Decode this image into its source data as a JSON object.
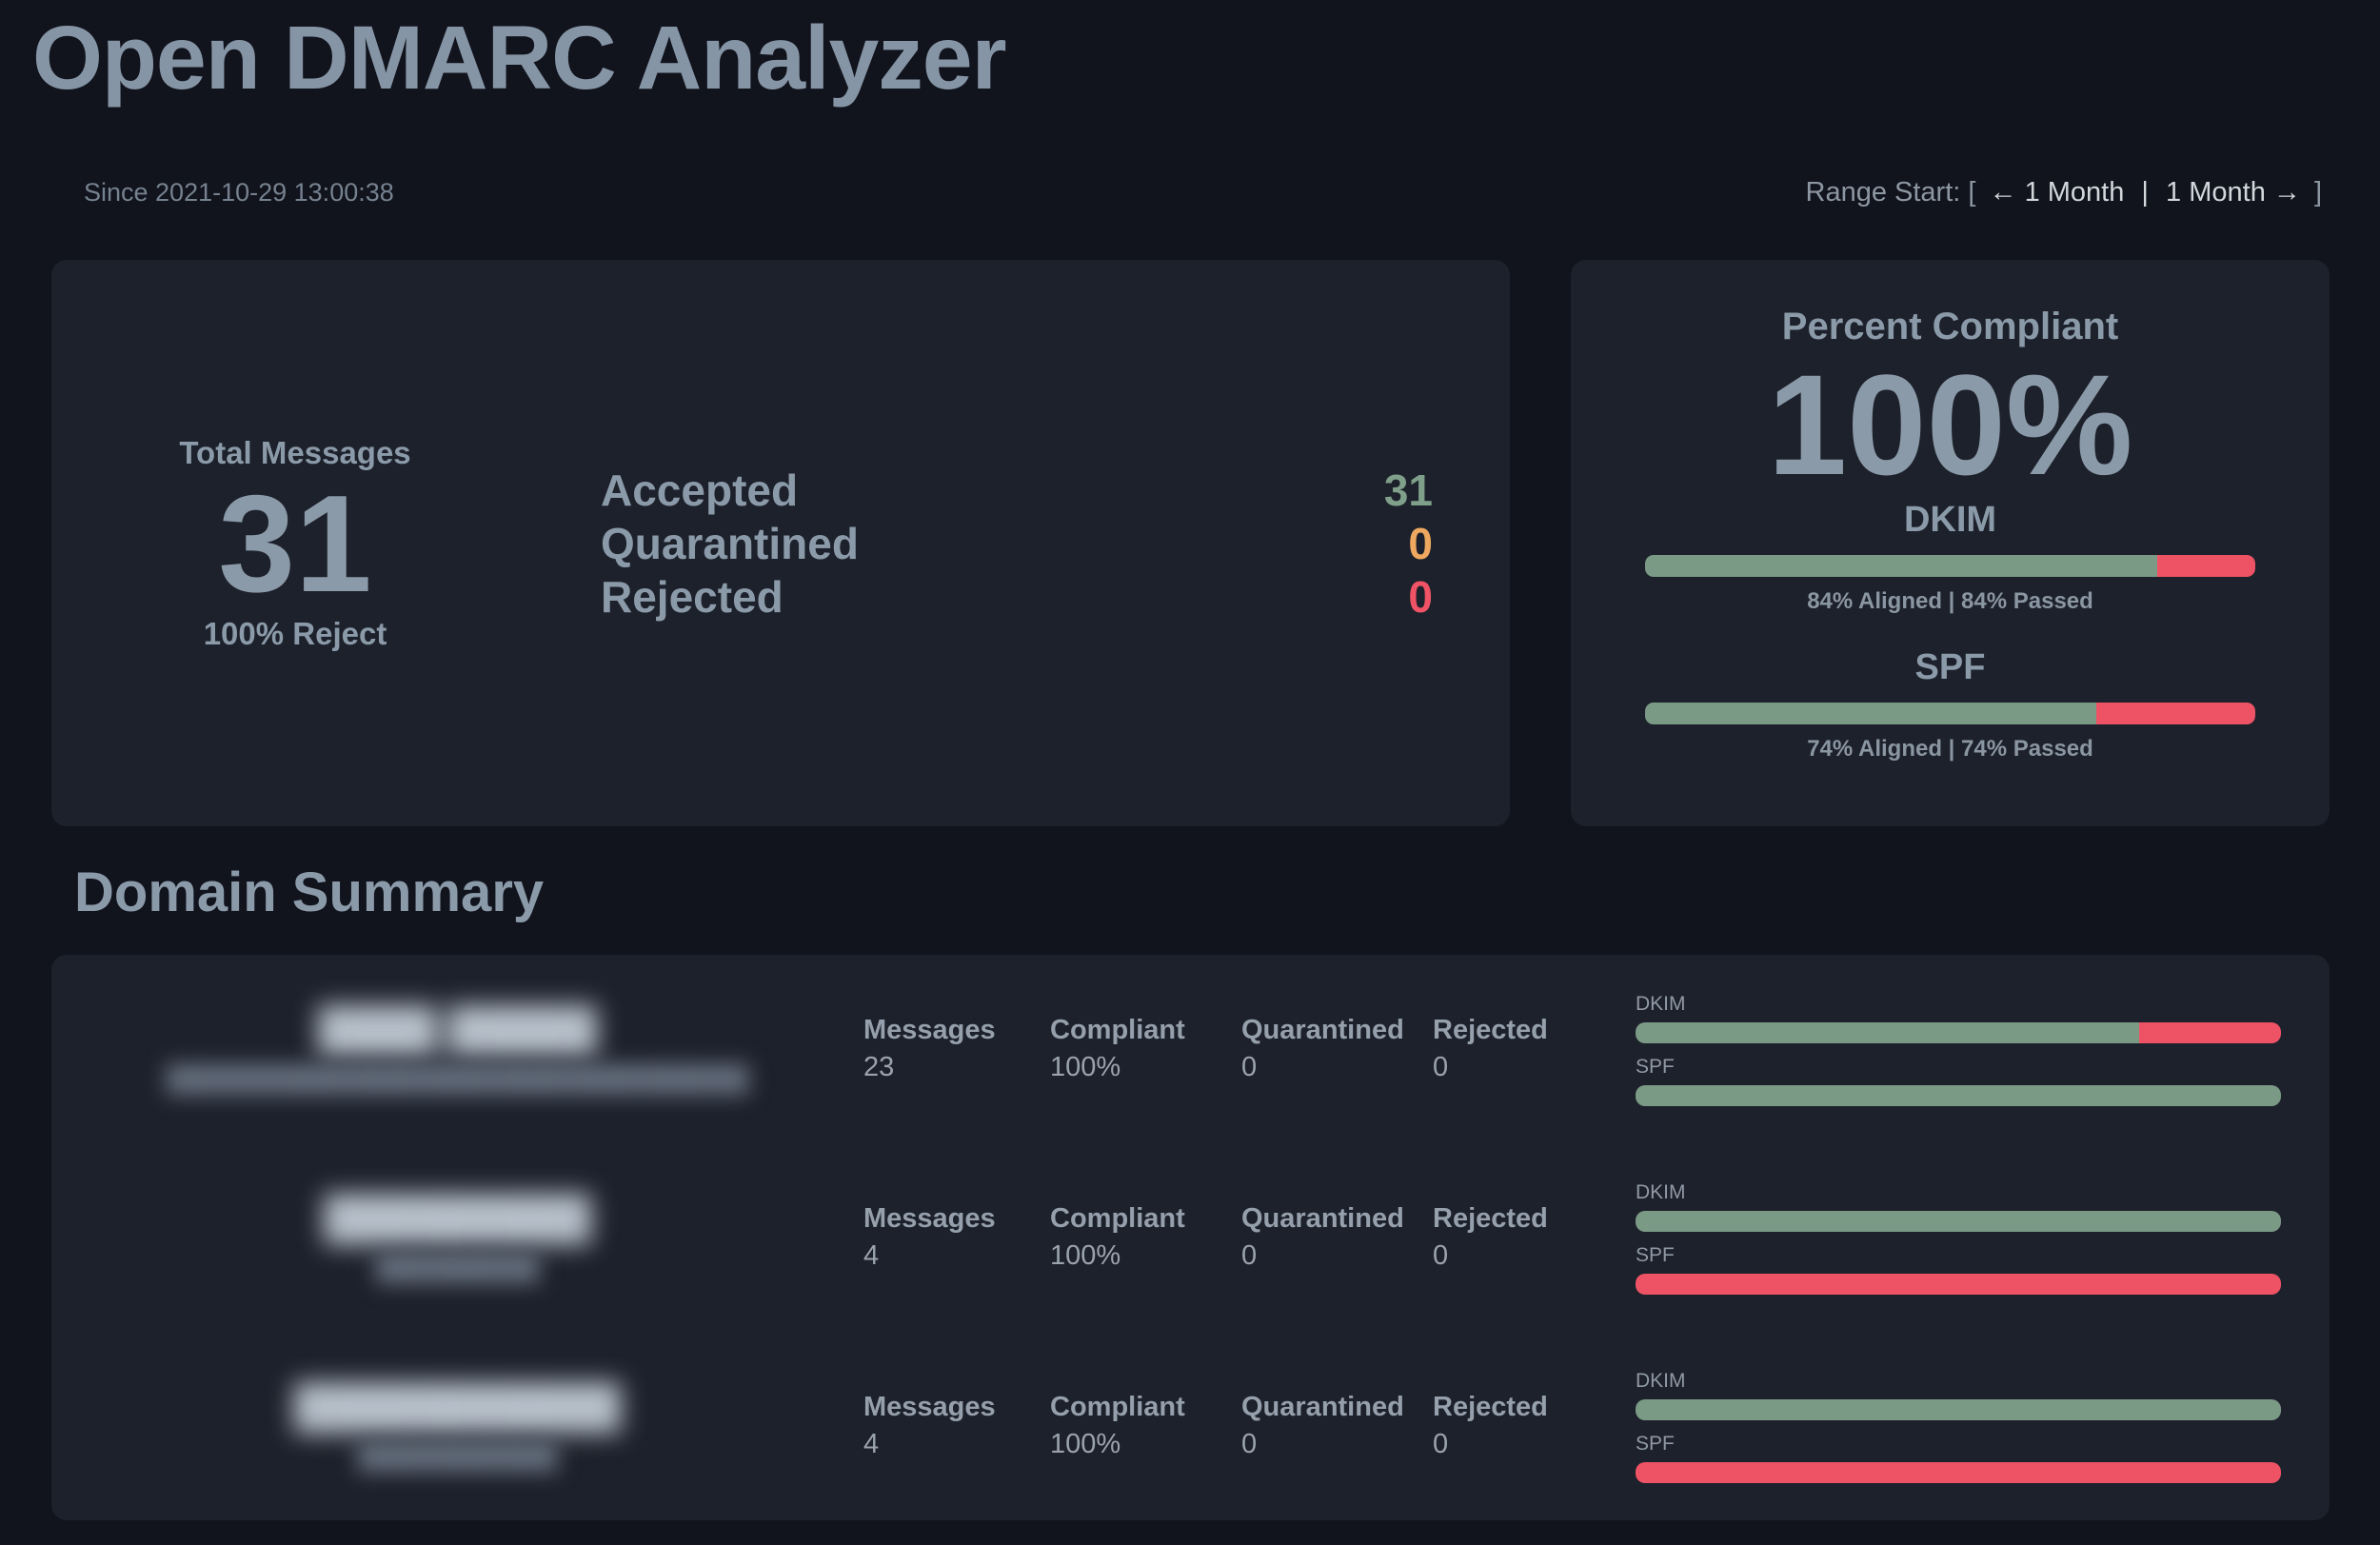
{
  "header": {
    "title": "Open DMARC Analyzer",
    "since": "Since 2021-10-29 13:00:38",
    "range": {
      "prefix": "Range Start: [",
      "back": "← 1 Month",
      "separator": "|",
      "forward": "1 Month →",
      "suffix": "]"
    }
  },
  "overview": {
    "total_label": "Total Messages",
    "total_value": "31",
    "total_sub": "100% Reject",
    "statuses": [
      {
        "label": "Accepted",
        "value": "31",
        "color": "#7f9f8a"
      },
      {
        "label": "Quarantined",
        "value": "0",
        "color": "#efa860"
      },
      {
        "label": "Rejected",
        "value": "0",
        "color": "#ef5365"
      }
    ]
  },
  "compliance": {
    "title": "Percent Compliant",
    "percent": "100%",
    "metrics": [
      {
        "name": "DKIM",
        "passed_pct": 84,
        "caption": "84% Aligned | 84% Passed"
      },
      {
        "name": "SPF",
        "passed_pct": 74,
        "caption": "74% Aligned | 74% Passed"
      }
    ]
  },
  "domain_summary": {
    "title": "Domain Summary",
    "rows": [
      {
        "domain_masked": "████ █████",
        "domain_submasked": "████████████████████████████████",
        "messages_label": "Messages",
        "messages_value": "23",
        "compliant_label": "Compliant",
        "compliant_value": "100%",
        "quarantined_label": "Quarantined",
        "quarantined_value": "0",
        "rejected_label": "Rejected",
        "rejected_value": "0",
        "dkim_label": "DKIM",
        "dkim_passed_pct": 78,
        "spf_label": "SPF",
        "spf_passed_pct": 100
      },
      {
        "domain_masked": "█████████",
        "domain_submasked": "█████████",
        "messages_label": "Messages",
        "messages_value": "4",
        "compliant_label": "Compliant",
        "compliant_value": "100%",
        "quarantined_label": "Quarantined",
        "quarantined_value": "0",
        "rejected_label": "Rejected",
        "rejected_value": "0",
        "dkim_label": "DKIM",
        "dkim_passed_pct": 100,
        "spf_label": "SPF",
        "spf_passed_pct": 0
      },
      {
        "domain_masked": "███████████",
        "domain_submasked": "███████████",
        "messages_label": "Messages",
        "messages_value": "4",
        "compliant_label": "Compliant",
        "compliant_value": "100%",
        "quarantined_label": "Quarantined",
        "quarantined_value": "0",
        "rejected_label": "Rejected",
        "rejected_value": "0",
        "dkim_label": "DKIM",
        "dkim_passed_pct": 100,
        "spf_label": "SPF",
        "spf_passed_pct": 0
      }
    ]
  },
  "colors": {
    "pass_green": "#7b9a86",
    "fail_red": "#ee5365",
    "quarantine_orange": "#efa860",
    "accent_slate": "#8b9aa9",
    "page_bg": "#11131d",
    "card_bg": "#1d212b"
  }
}
